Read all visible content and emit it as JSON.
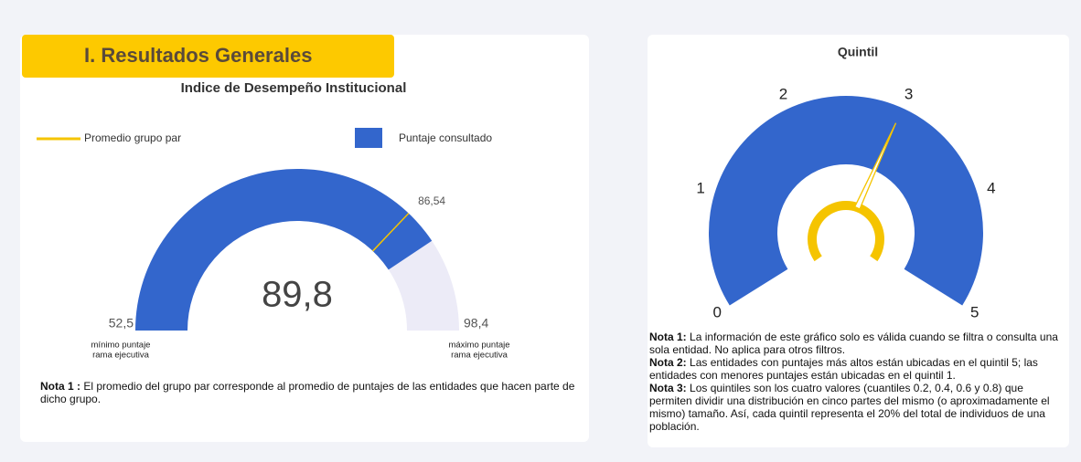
{
  "header": {
    "title": "I. Resultados Generales"
  },
  "chart_data": [
    {
      "type": "gauge",
      "title": "Indice de Desempeño Institucional",
      "legend": [
        {
          "name": "Promedio grupo par",
          "color": "#f5c400"
        },
        {
          "name": "Puntaje consultado",
          "color": "#3366cc"
        }
      ],
      "value": 89.8,
      "value_label": "89,8",
      "reference": 86.54,
      "reference_label": "86,54",
      "ylim": [
        52.5,
        98.4
      ],
      "yticks": [
        {
          "value": 52.5,
          "label": "52,5"
        },
        {
          "value": 98.4,
          "label": "98,4"
        }
      ],
      "tick_captions": [
        [
          "mínimo puntaje",
          "rama ejecutiva"
        ],
        [
          "máximo puntaje",
          "rama ejecutiva"
        ]
      ],
      "track_color": "#ecebf7",
      "note": {
        "label": "Nota 1 :",
        "text": "El promedio del grupo par corresponde al promedio de puntajes de las entidades que hacen parte de dicho grupo."
      }
    },
    {
      "type": "dial",
      "title": "Quintil",
      "needle": 3,
      "color": "#3366cc",
      "needle_color": "#f5c400",
      "ylim": [
        0,
        5
      ],
      "yticks": [
        0,
        1,
        2,
        3,
        4,
        5
      ],
      "notes": [
        {
          "label": "Nota 1:",
          "text": "La información de este gráfico solo es válida cuando se filtra o consulta una sola entidad. No aplica para otros filtros."
        },
        {
          "label": "Nota 2:",
          "text": "Las entidades con puntajes más altos están ubicadas en el quintil 5; las entidades con menores puntajes están ubicadas en el quintil 1."
        },
        {
          "label": "Nota 3:",
          "text": "Los quintiles son los cuatro valores (cuantiles 0.2, 0.4, 0.6 y 0.8) que permiten dividir una distribución en cinco partes del mismo (o aproximadamente el mismo) tamaño. Así, cada quintil representa el 20% del total de individuos de una población."
        }
      ]
    }
  ]
}
